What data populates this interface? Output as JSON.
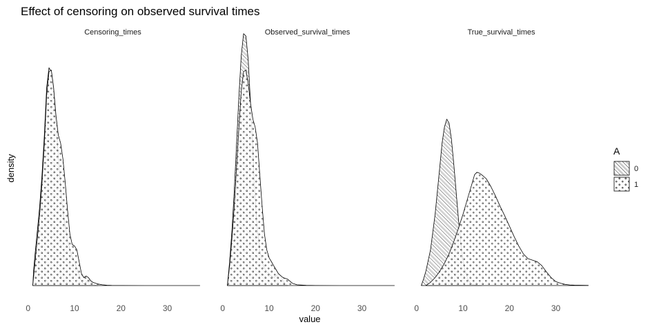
{
  "chart_data": {
    "type": "area",
    "title": "Effect of censoring on observed survival times",
    "xlabel": "value",
    "ylabel": "density",
    "xlim": [
      -1,
      37.5
    ],
    "ylim": [
      0,
      0.31
    ],
    "x_ticks": [
      0,
      10,
      20,
      30
    ],
    "y_ticks_shown": false,
    "grid": false,
    "legend": {
      "title": "A",
      "position": "right",
      "labels": [
        "0",
        "1"
      ],
      "patterns": [
        "stripe",
        "dots"
      ]
    },
    "facets": [
      {
        "label": "Censoring_times",
        "series": [
          {
            "name": "0",
            "pattern": "stripe",
            "points": [
              [
                1,
                0
              ],
              [
                1.2,
                0.02
              ],
              [
                1.5,
                0.04
              ],
              [
                2,
                0.07
              ],
              [
                2.5,
                0.1
              ],
              [
                3,
                0.14
              ],
              [
                3.5,
                0.19
              ],
              [
                4,
                0.25
              ],
              [
                4.5,
                0.275
              ],
              [
                5,
                0.27
              ],
              [
                5.5,
                0.245
              ],
              [
                6,
                0.205
              ],
              [
                6.5,
                0.165
              ],
              [
                7,
                0.125
              ],
              [
                7.5,
                0.095
              ],
              [
                8,
                0.075
              ],
              [
                8.5,
                0.058
              ],
              [
                9,
                0.045
              ],
              [
                9.5,
                0.036
              ],
              [
                10,
                0.03
              ],
              [
                10.5,
                0.022
              ],
              [
                11,
                0.013
              ],
              [
                11.5,
                0.005
              ],
              [
                12,
                0.002
              ],
              [
                12.5,
                0.004
              ],
              [
                13,
                0.008
              ],
              [
                13.5,
                0.006
              ],
              [
                14,
                0.002
              ],
              [
                14.5,
                0.0005
              ],
              [
                15,
                0
              ]
            ]
          },
          {
            "name": "1",
            "pattern": "dots",
            "points": [
              [
                1,
                0
              ],
              [
                1.5,
                0.03
              ],
              [
                2,
                0.06
              ],
              [
                2.5,
                0.09
              ],
              [
                3,
                0.13
              ],
              [
                3.5,
                0.18
              ],
              [
                4,
                0.24
              ],
              [
                4.5,
                0.27
              ],
              [
                5,
                0.272
              ],
              [
                5.5,
                0.25
              ],
              [
                6,
                0.215
              ],
              [
                6.5,
                0.19
              ],
              [
                7,
                0.18
              ],
              [
                7.5,
                0.16
              ],
              [
                8,
                0.13
              ],
              [
                8.5,
                0.095
              ],
              [
                9,
                0.065
              ],
              [
                9.5,
                0.052
              ],
              [
                10,
                0.05
              ],
              [
                10.5,
                0.045
              ],
              [
                11,
                0.03
              ],
              [
                11.5,
                0.015
              ],
              [
                12,
                0.01
              ],
              [
                12.5,
                0.012
              ],
              [
                13,
                0.01
              ],
              [
                13.5,
                0.006
              ],
              [
                14,
                0.004
              ],
              [
                15,
                0.002
              ],
              [
                16,
                0.001
              ],
              [
                17,
                0.0004
              ],
              [
                18,
                0.0002
              ],
              [
                20,
                0.0001
              ],
              [
                25,
                0
              ],
              [
                30,
                0
              ],
              [
                37,
                0
              ]
            ]
          }
        ]
      },
      {
        "label": "Observed_survival_times",
        "series": [
          {
            "name": "0",
            "pattern": "stripe",
            "points": [
              [
                1,
                0
              ],
              [
                1.5,
                0.03
              ],
              [
                2,
                0.07
              ],
              [
                2.5,
                0.12
              ],
              [
                3,
                0.18
              ],
              [
                3.5,
                0.24
              ],
              [
                4,
                0.29
              ],
              [
                4.5,
                0.318
              ],
              [
                5,
                0.315
              ],
              [
                5.5,
                0.285
              ],
              [
                6,
                0.23
              ],
              [
                6.5,
                0.17
              ],
              [
                7,
                0.11
              ],
              [
                7.5,
                0.07
              ],
              [
                8,
                0.045
              ],
              [
                8.5,
                0.03
              ],
              [
                9,
                0.022
              ],
              [
                9.5,
                0.018
              ],
              [
                10,
                0.015
              ],
              [
                10.5,
                0.012
              ],
              [
                11,
                0.01
              ],
              [
                11.5,
                0.012
              ],
              [
                12,
                0.015
              ],
              [
                12.5,
                0.012
              ],
              [
                13,
                0.006
              ],
              [
                13.5,
                0.002
              ],
              [
                14,
                0
              ]
            ]
          },
          {
            "name": "1",
            "pattern": "dots",
            "points": [
              [
                1,
                0
              ],
              [
                1.5,
                0.025
              ],
              [
                2,
                0.06
              ],
              [
                2.5,
                0.1
              ],
              [
                3,
                0.15
              ],
              [
                3.5,
                0.2
              ],
              [
                4,
                0.245
              ],
              [
                4.5,
                0.27
              ],
              [
                5,
                0.272
              ],
              [
                5.5,
                0.255
              ],
              [
                6,
                0.23
              ],
              [
                6.5,
                0.21
              ],
              [
                7,
                0.2
              ],
              [
                7.5,
                0.18
              ],
              [
                8,
                0.14
              ],
              [
                8.5,
                0.1
              ],
              [
                9,
                0.065
              ],
              [
                9.5,
                0.045
              ],
              [
                10,
                0.035
              ],
              [
                10.5,
                0.03
              ],
              [
                11,
                0.025
              ],
              [
                11.5,
                0.02
              ],
              [
                12,
                0.015
              ],
              [
                13,
                0.01
              ],
              [
                14,
                0.008
              ],
              [
                15,
                0.003
              ],
              [
                16,
                0.001
              ],
              [
                18,
                0.0003
              ],
              [
                20,
                0.0001
              ],
              [
                25,
                0
              ],
              [
                30,
                0
              ],
              [
                37,
                0
              ]
            ]
          }
        ]
      },
      {
        "label": "True_survival_times",
        "series": [
          {
            "name": "0",
            "pattern": "stripe",
            "points": [
              [
                1,
                0
              ],
              [
                1.5,
                0.008
              ],
              [
                2,
                0.018
              ],
              [
                3,
                0.045
              ],
              [
                4,
                0.09
              ],
              [
                5,
                0.15
              ],
              [
                5.5,
                0.18
              ],
              [
                6,
                0.2
              ],
              [
                6.5,
                0.21
              ],
              [
                7,
                0.205
              ],
              [
                7.5,
                0.185
              ],
              [
                8,
                0.155
              ],
              [
                8.5,
                0.12
              ],
              [
                9,
                0.085
              ],
              [
                9.5,
                0.055
              ],
              [
                10,
                0.032
              ],
              [
                10.5,
                0.018
              ],
              [
                11,
                0.009
              ],
              [
                11.5,
                0.004
              ],
              [
                12,
                0.0015
              ],
              [
                13,
                0.0003
              ],
              [
                14,
                0
              ]
            ]
          },
          {
            "name": "1",
            "pattern": "dots",
            "points": [
              [
                2,
                0
              ],
              [
                3,
                0.004
              ],
              [
                4,
                0.01
              ],
              [
                5,
                0.018
              ],
              [
                6,
                0.028
              ],
              [
                7,
                0.04
              ],
              [
                8,
                0.055
              ],
              [
                9,
                0.072
              ],
              [
                10,
                0.09
              ],
              [
                11,
                0.11
              ],
              [
                12,
                0.13
              ],
              [
                12.5,
                0.14
              ],
              [
                13,
                0.143
              ],
              [
                13.5,
                0.142
              ],
              [
                14,
                0.14
              ],
              [
                15,
                0.135
              ],
              [
                16,
                0.125
              ],
              [
                17,
                0.113
              ],
              [
                18,
                0.1
              ],
              [
                19,
                0.088
              ],
              [
                20,
                0.075
              ],
              [
                21,
                0.062
              ],
              [
                22,
                0.05
              ],
              [
                23,
                0.04
              ],
              [
                24,
                0.034
              ],
              [
                25,
                0.032
              ],
              [
                26,
                0.03
              ],
              [
                27,
                0.025
              ],
              [
                28,
                0.017
              ],
              [
                29,
                0.01
              ],
              [
                30,
                0.005
              ],
              [
                31,
                0.003
              ],
              [
                32,
                0.0015
              ],
              [
                33,
                0.0008
              ],
              [
                34,
                0.0005
              ],
              [
                35,
                0.0004
              ],
              [
                36,
                0.0003
              ],
              [
                37,
                0.0002
              ]
            ]
          }
        ]
      }
    ]
  }
}
